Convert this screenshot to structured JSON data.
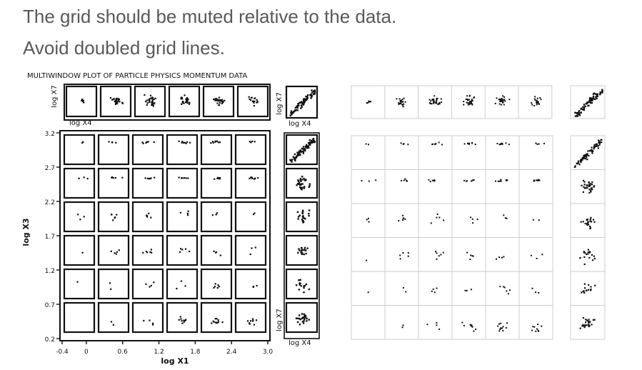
{
  "slide": {
    "line1": "The grid should be muted relative to the data.",
    "line2": "Avoid doubled grid lines."
  },
  "chart_data": [
    {
      "type": "scatter",
      "variant": "multiwindow scatterplot matrix (original, heavy doubled window borders)",
      "title": "MULTIWINDOW PLOT OF PARTICLE PHYSICS MOMENTUM DATA",
      "xlabel": "log X1",
      "ylabel": "log X3",
      "x_ticks": [
        "-0.4",
        "0",
        "0.6",
        "1.2",
        "1.8",
        "2.4",
        "3.0"
      ],
      "y_ticks": [
        "3.2",
        "2.7",
        "2.2",
        "1.7",
        "1.2",
        "0.7",
        "0.2"
      ],
      "xlim": [
        -0.4,
        3.0
      ],
      "ylim": [
        0.2,
        3.2
      ],
      "top_strip": {
        "ylabel": "log X7",
        "xlabel": "log X4"
      },
      "right_strip": {
        "ylabel": "log X7",
        "xlabel": "log X4"
      },
      "corner_top": {
        "ylabel": "log X7",
        "xlabel": "log X4"
      },
      "corner_bottom": {
        "ylabel": "log X7",
        "xlabel": "log X4"
      }
    },
    {
      "type": "scatter",
      "variant": "redesigned multiwindow matrix with muted, single grid lines",
      "grid_color": "#cccccc",
      "rows": 6,
      "cols": 6
    }
  ]
}
